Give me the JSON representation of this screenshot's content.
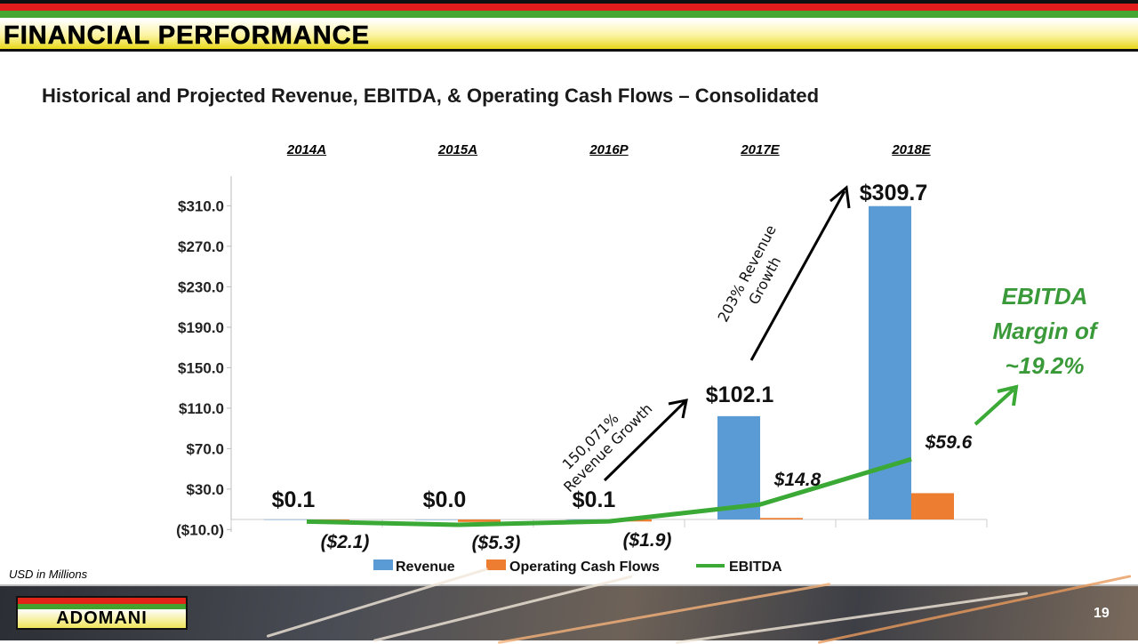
{
  "header": {
    "title": "FINANCIAL PERFORMANCE"
  },
  "subtitle": "Historical and Projected Revenue, EBITDA, & Operating Cash Flows – Consolidated",
  "units_note": "USD in Millions",
  "footer": {
    "logo_text": "ADOMANI",
    "page_number": "19"
  },
  "annotations": {
    "growth_1_line1": "150,071%",
    "growth_1_line2": "Revenue Growth",
    "growth_2_line1": "203% Revenue",
    "growth_2_line2": "Growth",
    "margin_line1": "EBITDA",
    "margin_line2": "Margin of",
    "margin_line3": "~19.2%"
  },
  "colors": {
    "revenue": "#5b9bd5",
    "ocf": "#ed7d31",
    "ebitda": "#3aa935",
    "margin_text": "#3a9a3a"
  },
  "chart_data": {
    "type": "bar",
    "categories": [
      "2014A",
      "2015A",
      "2016P",
      "2017E",
      "2018E"
    ],
    "ylim": [
      -10,
      340
    ],
    "yticks": [
      -10,
      30,
      70,
      110,
      150,
      190,
      230,
      270,
      310
    ],
    "ytick_labels": [
      "($10.0)",
      "$30.0",
      "$70.0",
      "$110.0",
      "$150.0",
      "$190.0",
      "$230.0",
      "$270.0",
      "$310.0"
    ],
    "series": [
      {
        "name": "Revenue",
        "type": "bar",
        "values": [
          0.1,
          0.0,
          0.1,
          102.1,
          309.7
        ],
        "labels": [
          "$0.1",
          "$0.0",
          "$0.1",
          "$102.1",
          "$309.7"
        ]
      },
      {
        "name": "Operating Cash Flows",
        "type": "bar",
        "values": [
          -0.5,
          -2.5,
          -2.0,
          1.5,
          26.0
        ]
      },
      {
        "name": "EBITDA",
        "type": "line",
        "values": [
          -2.1,
          -5.3,
          -1.9,
          14.8,
          59.6
        ],
        "labels": [
          "($2.1)",
          "($5.3)",
          "($1.9)",
          "$14.8",
          "$59.6"
        ]
      }
    ],
    "legend": "bottom"
  }
}
